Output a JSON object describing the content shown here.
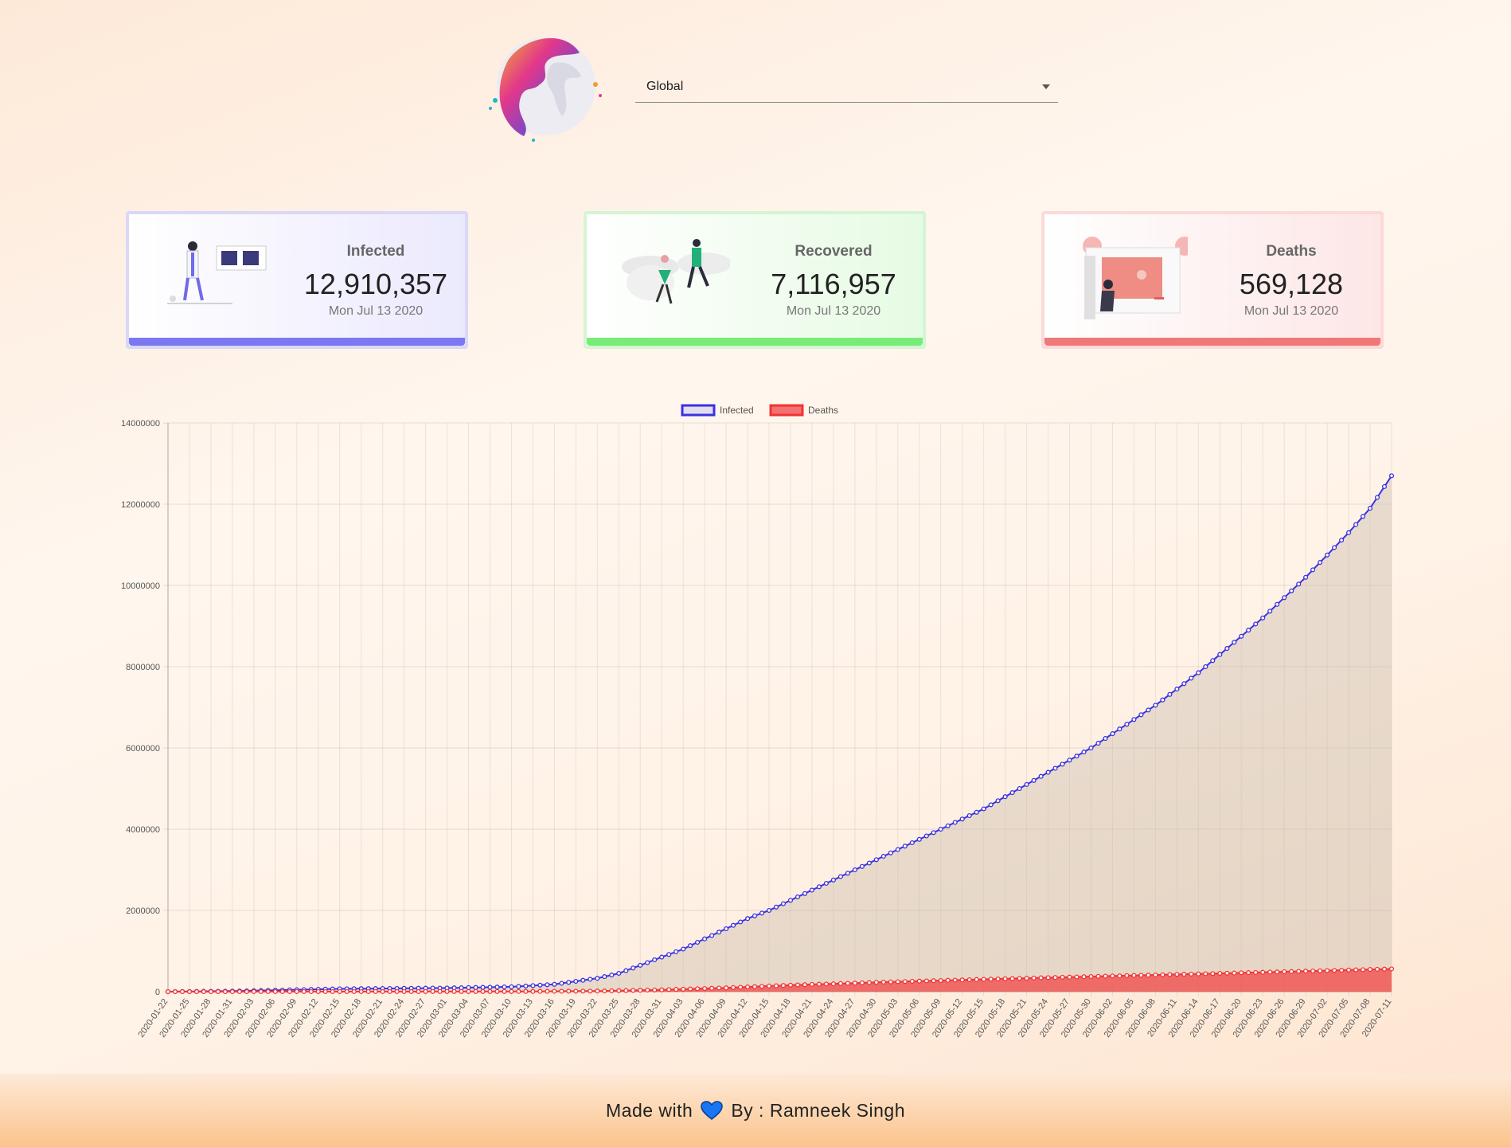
{
  "country_select": {
    "value": "Global"
  },
  "cards": {
    "infected": {
      "title": "Infected",
      "value": "12,910,357",
      "date": "Mon Jul 13 2020",
      "color": "#7b78f2"
    },
    "recovered": {
      "title": "Recovered",
      "value": "7,116,957",
      "date": "Mon Jul 13 2020",
      "color": "#78ec76"
    },
    "deaths": {
      "title": "Deaths",
      "value": "569,128",
      "date": "Mon Jul 13 2020",
      "color": "#f07878"
    }
  },
  "footer": {
    "made_with": "Made with",
    "by": "By : Ramneek Singh",
    "heart_color": "#1877f2"
  },
  "chart_data": {
    "type": "line",
    "legend": {
      "position": "top",
      "entries": [
        "Infected",
        "Deaths"
      ]
    },
    "grid": true,
    "ylim": [
      0,
      14000000
    ],
    "yticks": [
      "0",
      "2000000",
      "4000000",
      "6000000",
      "8000000",
      "10000000",
      "12000000",
      "14000000"
    ],
    "x_start": "2020-01-22",
    "x_end": "2020-07-11",
    "xtick_labels": [
      "2020-01-22",
      "2020-01-25",
      "2020-01-28",
      "2020-01-31",
      "2020-02-03",
      "2020-02-06",
      "2020-02-09",
      "2020-02-12",
      "2020-02-15",
      "2020-02-18",
      "2020-02-21",
      "2020-02-24",
      "2020-02-27",
      "2020-03-01",
      "2020-03-04",
      "2020-03-07",
      "2020-03-10",
      "2020-03-13",
      "2020-03-16",
      "2020-03-19",
      "2020-03-22",
      "2020-03-25",
      "2020-03-28",
      "2020-03-31",
      "2020-04-03",
      "2020-04-06",
      "2020-04-09",
      "2020-04-12",
      "2020-04-15",
      "2020-04-18",
      "2020-04-21",
      "2020-04-24",
      "2020-04-27",
      "2020-04-30",
      "2020-05-03",
      "2020-05-06",
      "2020-05-09",
      "2020-05-12",
      "2020-05-15",
      "2020-05-18",
      "2020-05-21",
      "2020-05-24",
      "2020-05-27",
      "2020-05-30",
      "2020-06-02",
      "2020-06-05",
      "2020-06-08",
      "2020-06-11",
      "2020-06-14",
      "2020-06-17",
      "2020-06-20",
      "2020-06-23",
      "2020-06-26",
      "2020-06-29",
      "2020-07-02",
      "2020-07-05",
      "2020-07-08",
      "2020-07-11"
    ],
    "series": [
      {
        "name": "Infected",
        "color": "#3a32e0",
        "fill": "rgba(205,190,175,0.45)",
        "points": [
          [
            "2020-01-22",
            0
          ],
          [
            "2020-02-01",
            15000
          ],
          [
            "2020-02-15",
            70000
          ],
          [
            "2020-03-01",
            90000
          ],
          [
            "2020-03-10",
            120000
          ],
          [
            "2020-03-16",
            180000
          ],
          [
            "2020-03-22",
            330000
          ],
          [
            "2020-03-25",
            450000
          ],
          [
            "2020-03-28",
            650000
          ],
          [
            "2020-03-31",
            850000
          ],
          [
            "2020-04-03",
            1050000
          ],
          [
            "2020-04-06",
            1300000
          ],
          [
            "2020-04-09",
            1550000
          ],
          [
            "2020-04-12",
            1800000
          ],
          [
            "2020-04-15",
            2000000
          ],
          [
            "2020-04-18",
            2250000
          ],
          [
            "2020-04-21",
            2500000
          ],
          [
            "2020-04-24",
            2750000
          ],
          [
            "2020-04-27",
            3000000
          ],
          [
            "2020-04-30",
            3250000
          ],
          [
            "2020-05-03",
            3500000
          ],
          [
            "2020-05-06",
            3750000
          ],
          [
            "2020-05-09",
            4000000
          ],
          [
            "2020-05-12",
            4250000
          ],
          [
            "2020-05-15",
            4500000
          ],
          [
            "2020-05-18",
            4800000
          ],
          [
            "2020-05-21",
            5100000
          ],
          [
            "2020-05-24",
            5400000
          ],
          [
            "2020-05-27",
            5700000
          ],
          [
            "2020-05-30",
            6000000
          ],
          [
            "2020-06-02",
            6350000
          ],
          [
            "2020-06-05",
            6700000
          ],
          [
            "2020-06-08",
            7050000
          ],
          [
            "2020-06-11",
            7450000
          ],
          [
            "2020-06-14",
            7850000
          ],
          [
            "2020-06-17",
            8300000
          ],
          [
            "2020-06-20",
            8750000
          ],
          [
            "2020-06-23",
            9200000
          ],
          [
            "2020-06-26",
            9700000
          ],
          [
            "2020-06-29",
            10200000
          ],
          [
            "2020-07-02",
            10750000
          ],
          [
            "2020-07-05",
            11300000
          ],
          [
            "2020-07-08",
            11900000
          ],
          [
            "2020-07-11",
            12700000
          ]
        ]
      },
      {
        "name": "Deaths",
        "color": "#f03434",
        "fill": "rgba(240,80,80,0.8)",
        "points": [
          [
            "2020-01-22",
            0
          ],
          [
            "2020-03-10",
            4000
          ],
          [
            "2020-03-22",
            15000
          ],
          [
            "2020-03-31",
            45000
          ],
          [
            "2020-04-09",
            95000
          ],
          [
            "2020-04-18",
            160000
          ],
          [
            "2020-04-30",
            230000
          ],
          [
            "2020-05-12",
            290000
          ],
          [
            "2020-05-24",
            345000
          ],
          [
            "2020-06-05",
            400000
          ],
          [
            "2020-06-17",
            450000
          ],
          [
            "2020-06-29",
            505000
          ],
          [
            "2020-07-11",
            560000
          ]
        ]
      }
    ]
  }
}
